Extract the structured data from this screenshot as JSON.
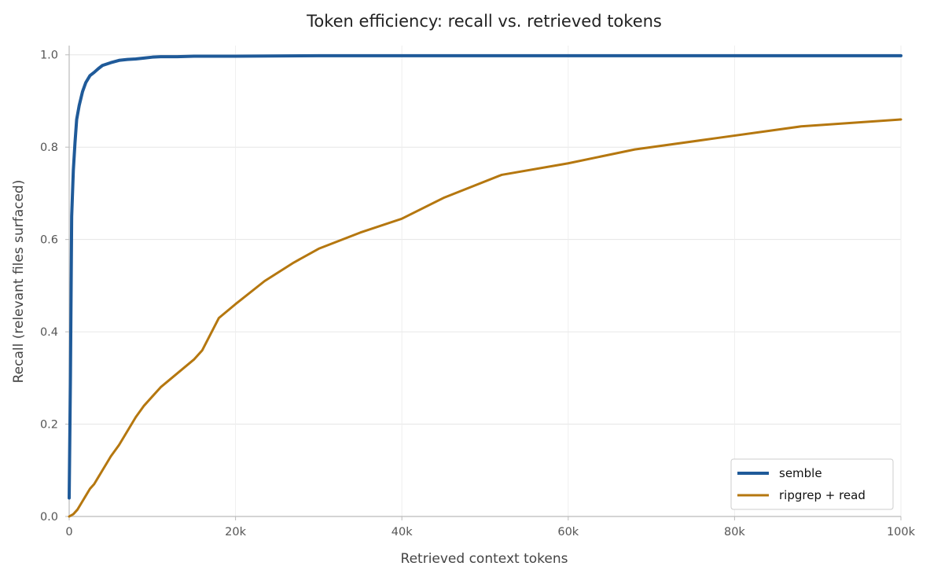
{
  "chart_data": {
    "type": "line",
    "title": "Token efficiency: recall vs. retrieved tokens",
    "xlabel": "Retrieved context tokens",
    "ylabel": "Recall (relevant files surfaced)",
    "xlim": [
      0,
      100000
    ],
    "ylim": [
      0,
      1.02
    ],
    "x_ticks": [
      0,
      20000,
      40000,
      60000,
      80000,
      100000
    ],
    "x_tick_labels": [
      "0",
      "20k",
      "40k",
      "60k",
      "80k",
      "100k"
    ],
    "y_ticks": [
      0,
      0.2,
      0.4,
      0.6,
      0.8,
      1.0
    ],
    "y_tick_labels": [
      "0.0",
      "0.2",
      "0.4",
      "0.6",
      "0.8",
      "1.0"
    ],
    "grid": true,
    "legend_position": "bottom-right",
    "series": [
      {
        "name": "semble",
        "color": "#1f5a99",
        "x": [
          0,
          150,
          300,
          500,
          700,
          900,
          1200,
          1600,
          2000,
          2500,
          3000,
          3500,
          4000,
          4500,
          5000,
          6000,
          7000,
          8000,
          9000,
          10000,
          11000,
          13000,
          15000,
          20000,
          30000,
          50000,
          100000
        ],
        "y": [
          0.04,
          0.3,
          0.65,
          0.75,
          0.81,
          0.86,
          0.89,
          0.92,
          0.94,
          0.955,
          0.962,
          0.97,
          0.977,
          0.98,
          0.983,
          0.988,
          0.99,
          0.991,
          0.993,
          0.995,
          0.996,
          0.996,
          0.997,
          0.997,
          0.998,
          0.998,
          0.998
        ]
      },
      {
        "name": "ripgrep + read",
        "color": "#b5770f",
        "x": [
          0,
          500,
          1000,
          1500,
          2000,
          2500,
          3000,
          3500,
          4000,
          4500,
          5000,
          6000,
          7000,
          8000,
          9000,
          10000,
          11000,
          13000,
          15000,
          16000,
          18000,
          20000,
          23500,
          27000,
          30000,
          35000,
          40000,
          45000,
          52000,
          60000,
          68000,
          78000,
          88000,
          100000
        ],
        "y": [
          0,
          0.005,
          0.015,
          0.03,
          0.045,
          0.06,
          0.07,
          0.085,
          0.1,
          0.115,
          0.13,
          0.155,
          0.185,
          0.215,
          0.24,
          0.26,
          0.28,
          0.31,
          0.34,
          0.36,
          0.43,
          0.46,
          0.51,
          0.55,
          0.58,
          0.615,
          0.645,
          0.69,
          0.74,
          0.765,
          0.795,
          0.82,
          0.845,
          0.86
        ]
      }
    ]
  }
}
